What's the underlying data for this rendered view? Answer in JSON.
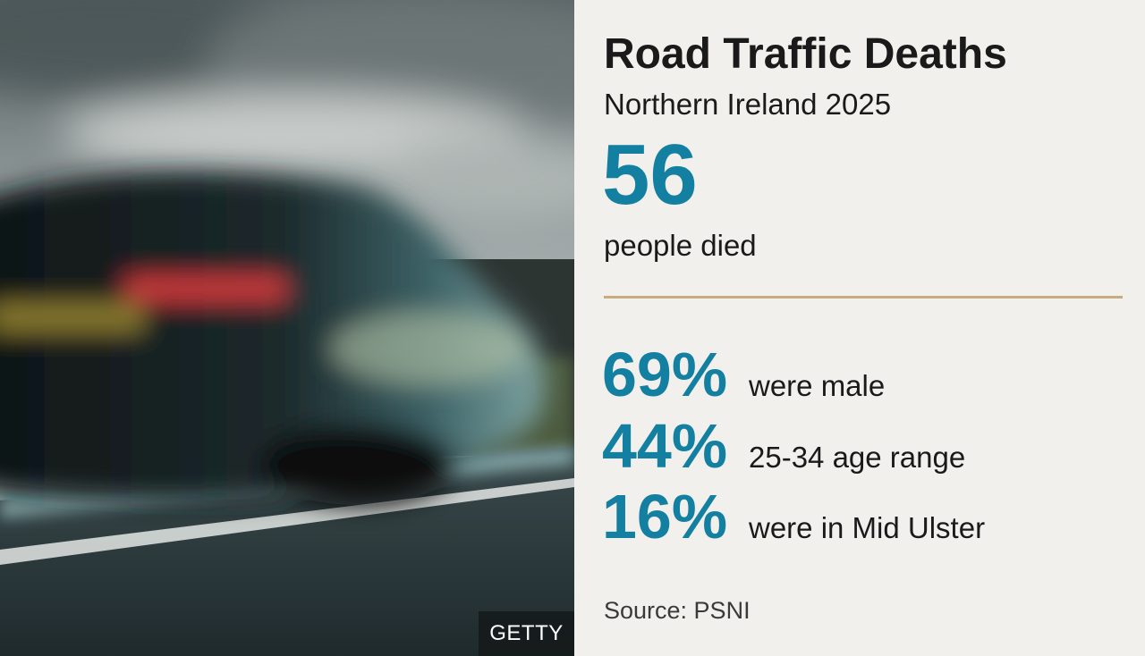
{
  "photo": {
    "credit": "GETTY"
  },
  "panel": {
    "title": "Road Traffic Deaths",
    "subtitle": "Northern Ireland 2025",
    "headline": {
      "value": "56",
      "label": "people died"
    },
    "stats": [
      {
        "value": "69%",
        "label": "were male"
      },
      {
        "value": "44%",
        "label": "25-34 age range"
      },
      {
        "value": "16%",
        "label": "were in Mid Ulster"
      }
    ],
    "source": "Source: PSNI"
  },
  "colors": {
    "accent": "#1380a1",
    "divider": "#c8ac7d",
    "background": "#f1f0ec",
    "text": "#1a1a1a"
  }
}
